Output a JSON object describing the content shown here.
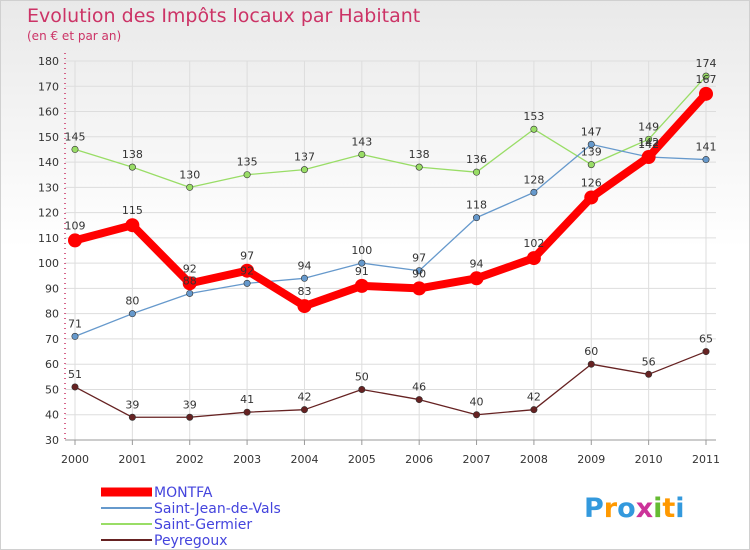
{
  "chart_data": {
    "type": "line",
    "title": "Evolution des Impôts locaux par Habitant",
    "subtitle": "(en € et par an)",
    "x": [
      "2000",
      "2001",
      "2002",
      "2003",
      "2004",
      "2005",
      "2006",
      "2007",
      "2008",
      "2009",
      "2010",
      "2011"
    ],
    "ylim": [
      30,
      180
    ],
    "yticks": [
      30,
      40,
      50,
      60,
      70,
      80,
      90,
      100,
      110,
      120,
      130,
      140,
      150,
      160,
      170,
      180
    ],
    "grid": true,
    "legend_position": "bottom-left",
    "series": [
      {
        "name": "Saint-Germier",
        "color": "#99dd66",
        "values": [
          145,
          138,
          130,
          135,
          137,
          143,
          138,
          136,
          153,
          139,
          149,
          174
        ]
      },
      {
        "name": "Saint-Jean-de-Vals",
        "color": "#6699cc",
        "values": [
          71,
          80,
          88,
          92,
          94,
          100,
          97,
          118,
          128,
          147,
          142,
          141
        ]
      },
      {
        "name": "Peyregoux",
        "color": "#662222",
        "values": [
          51,
          39,
          39,
          41,
          42,
          50,
          46,
          40,
          42,
          60,
          56,
          65
        ]
      },
      {
        "name": "MONTFA",
        "color": "#ff0000",
        "values": [
          109,
          115,
          92,
          97,
          83,
          91,
          90,
          94,
          102,
          126,
          142,
          167
        ]
      }
    ],
    "legend_order": [
      "MONTFA",
      "Saint-Jean-de-Vals",
      "Saint-Germier",
      "Peyregoux"
    ]
  },
  "brand": {
    "logo_letters": [
      "P",
      "r",
      "o",
      "x",
      "i",
      "t",
      "i"
    ],
    "logo_colors": [
      "#3399dd",
      "#ff9900",
      "#3399dd",
      "#cc3399",
      "#66bb33",
      "#ff9900",
      "#3399dd"
    ]
  }
}
